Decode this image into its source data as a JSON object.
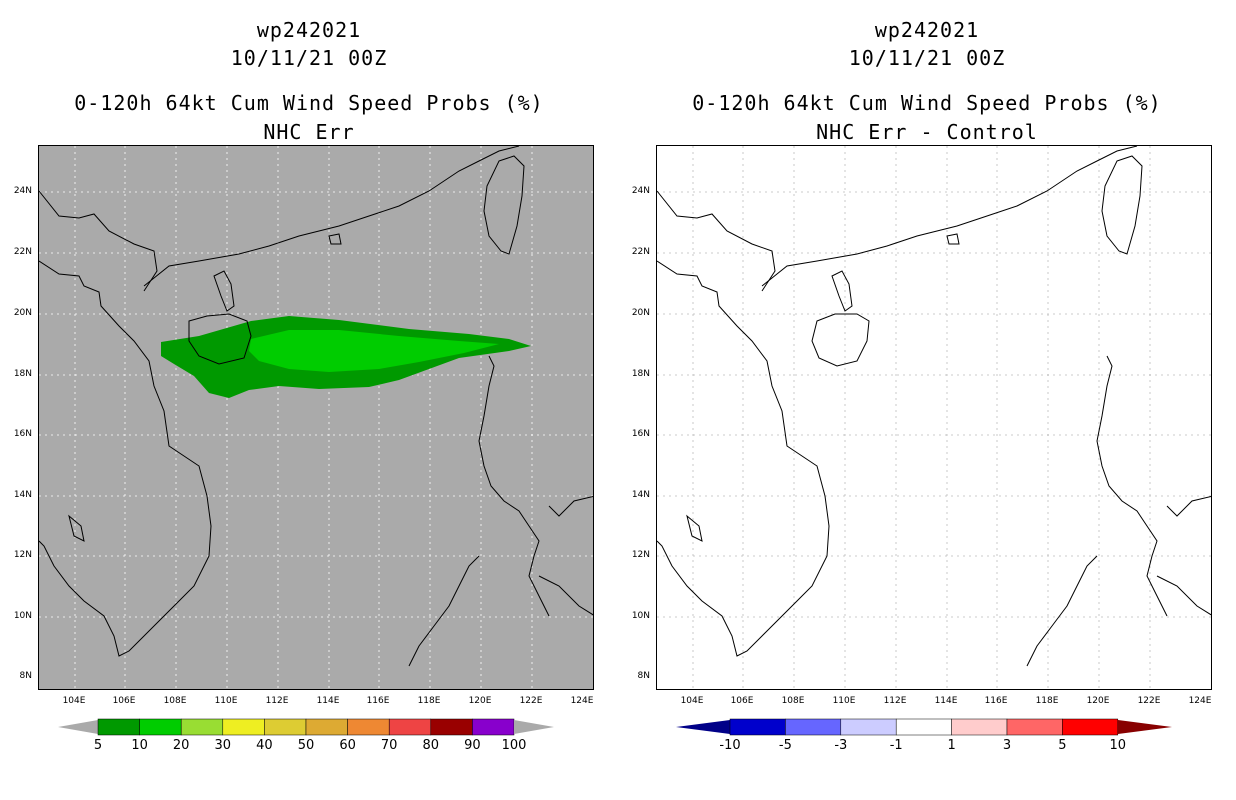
{
  "left": {
    "title": [
      "wp242021",
      "10/11/21 00Z",
      "0-120h 64kt Cum Wind Speed Probs (%)",
      "NHC Err"
    ],
    "colorbar": {
      "labels": [
        "5",
        "10",
        "20",
        "30",
        "40",
        "50",
        "60",
        "70",
        "80",
        "90",
        "100"
      ],
      "colors": [
        "#009900",
        "#00cc00",
        "#99dd33",
        "#eeee22",
        "#ddcc33",
        "#ddaa33",
        "#ee8833",
        "#ee4444",
        "#990000",
        "#8800cc"
      ]
    },
    "under_color": "#aaaaaa",
    "over_color": "#aaaaaa"
  },
  "right": {
    "title": [
      "wp242021",
      "10/11/21 00Z",
      "0-120h 64kt Cum Wind Speed Probs (%)",
      "NHC Err - Control"
    ],
    "colorbar": {
      "labels": [
        "-10",
        "-5",
        "-3",
        "-1",
        "1",
        "3",
        "5",
        "10"
      ],
      "colors": [
        "#0000cc",
        "#6666ff",
        "#ccccff",
        "#ffffff",
        "#ffcccc",
        "#ff6666",
        "#ff0000"
      ]
    },
    "under_color": "#000088",
    "over_color": "#880000"
  },
  "axes": {
    "lat_labels": [
      "24N",
      "22N",
      "20N",
      "18N",
      "16N",
      "14N",
      "12N",
      "10N",
      "8N"
    ],
    "lon_labels": [
      "104E",
      "106E",
      "108E",
      "110E",
      "112E",
      "114E",
      "116E",
      "118E",
      "120E",
      "122E",
      "124E"
    ]
  }
}
